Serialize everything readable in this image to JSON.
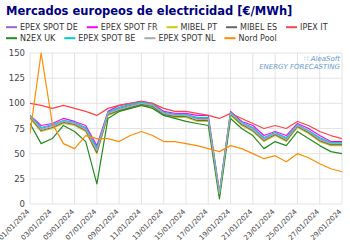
{
  "chart_data": {
    "type": "line",
    "title": "Mercados europeos de electricidad [€/MWh]",
    "categories": [
      "01/01/2024",
      null,
      "03/01/2024",
      null,
      "05/01/2024",
      null,
      "07/01/2024",
      null,
      "09/01/2024",
      null,
      "11/01/2024",
      null,
      "13/01/2024",
      null,
      "15/01/2024",
      null,
      "17/01/2024",
      null,
      "19/01/2024",
      null,
      "21/01/2024",
      null,
      "23/01/2024",
      null,
      "25/01/2024",
      null,
      "27/01/2024",
      null,
      "29/01/2024"
    ],
    "series": [
      {
        "name": "EPEX SPOT DE",
        "color": "#9966cc",
        "values": [
          88,
          75,
          78,
          82,
          80,
          75,
          55,
          90,
          95,
          98,
          100,
          98,
          90,
          88,
          88,
          85,
          85,
          10,
          90,
          80,
          75,
          65,
          70,
          65,
          78,
          72,
          65,
          60,
          60
        ]
      },
      {
        "name": "EPEX SPOT FR",
        "color": "#ff00ff",
        "values": [
          88,
          78,
          80,
          85,
          82,
          78,
          58,
          92,
          98,
          100,
          102,
          100,
          92,
          90,
          90,
          88,
          88,
          12,
          92,
          82,
          78,
          68,
          72,
          68,
          80,
          75,
          68,
          62,
          62
        ]
      },
      {
        "name": "MIBEL PT",
        "color": "#cccc00",
        "values": [
          85,
          72,
          75,
          80,
          78,
          72,
          50,
          88,
          92,
          95,
          98,
          96,
          88,
          86,
          86,
          82,
          82,
          8,
          88,
          78,
          72,
          62,
          68,
          62,
          76,
          70,
          62,
          58,
          58
        ]
      },
      {
        "name": "MIBEL ES",
        "color": "#666666",
        "values": [
          86,
          73,
          76,
          81,
          79,
          73,
          51,
          89,
          93,
          96,
          99,
          97,
          89,
          87,
          87,
          83,
          83,
          9,
          89,
          79,
          73,
          63,
          69,
          63,
          77,
          71,
          63,
          59,
          59
        ]
      },
      {
        "name": "IPEX IT",
        "color": "#ff4444",
        "values": [
          100,
          98,
          95,
          98,
          95,
          92,
          88,
          95,
          98,
          100,
          102,
          100,
          95,
          92,
          92,
          90,
          88,
          85,
          90,
          85,
          80,
          75,
          78,
          75,
          82,
          78,
          72,
          68,
          65
        ]
      },
      {
        "name": "N2EX UK",
        "color": "#228B22",
        "values": [
          80,
          60,
          65,
          78,
          72,
          62,
          20,
          85,
          92,
          95,
          98,
          95,
          88,
          85,
          82,
          80,
          78,
          5,
          85,
          75,
          68,
          55,
          62,
          58,
          72,
          65,
          58,
          52,
          50
        ]
      },
      {
        "name": "EPEX SPOT BE",
        "color": "#00cccc",
        "values": [
          88,
          76,
          79,
          83,
          81,
          76,
          56,
          91,
          96,
          99,
          101,
          99,
          91,
          89,
          89,
          86,
          86,
          11,
          91,
          81,
          76,
          66,
          71,
          66,
          79,
          73,
          66,
          61,
          61
        ]
      },
      {
        "name": "EPEX SPOT NL",
        "color": "#aaaaaa",
        "values": [
          87,
          74,
          77,
          82,
          80,
          74,
          53,
          90,
          94,
          97,
          100,
          98,
          90,
          88,
          88,
          84,
          84,
          10,
          90,
          80,
          74,
          64,
          70,
          64,
          78,
          72,
          64,
          60,
          60
        ]
      },
      {
        "name": "Nord Pool",
        "color": "#ff8c00",
        "values": [
          70,
          150,
          80,
          60,
          55,
          68,
          65,
          65,
          62,
          68,
          72,
          68,
          62,
          62,
          60,
          58,
          55,
          52,
          58,
          55,
          50,
          45,
          48,
          42,
          50,
          46,
          40,
          35,
          32
        ]
      }
    ],
    "ylim": [
      0,
      150
    ],
    "yticks": [
      0,
      25,
      50,
      75,
      100,
      125,
      150
    ],
    "grid": true,
    "legend": "top",
    "annotations": [
      "∷ AleaSoft",
      "ENERGY FORECASTING"
    ]
  }
}
